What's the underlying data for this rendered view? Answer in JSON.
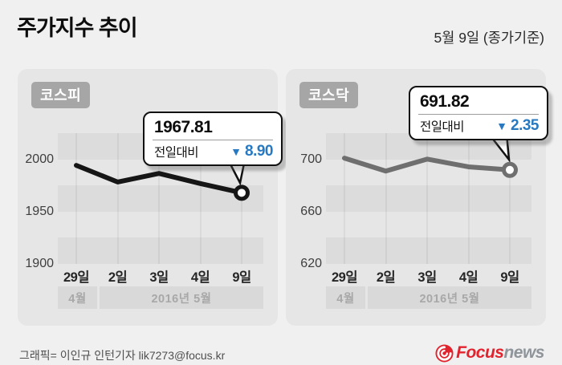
{
  "header": {
    "title": "주가지수 추이",
    "date_note": "5월 9일 (종가기준)"
  },
  "panels": [
    {
      "badge": "코스피",
      "callout": {
        "value": "1967.81",
        "change_label": "전일대비",
        "direction": "down",
        "direction_symbol": "▼",
        "change": "8.90"
      },
      "y_ticks": [
        "2000",
        "1950",
        "1900"
      ],
      "x_ticks": [
        "29일",
        "2일",
        "3일",
        "4일",
        "9일"
      ],
      "month_bars": [
        "4월",
        "2016년 5월"
      ]
    },
    {
      "badge": "코스닥",
      "callout": {
        "value": "691.82",
        "change_label": "전일대비",
        "direction": "down",
        "direction_symbol": "▼",
        "change": "2.35"
      },
      "y_ticks": [
        "700",
        "660",
        "620"
      ],
      "x_ticks": [
        "29일",
        "2일",
        "3일",
        "4일",
        "9일"
      ],
      "month_bars": [
        "4월",
        "2016년 5월"
      ]
    }
  ],
  "footer": {
    "credit": "그래픽= 이인규 인턴기자 lik7273@focus.kr",
    "logo_part1": "Focus",
    "logo_part2": "news"
  },
  "colors": {
    "accent_blue": "#2779c1",
    "kospi_line": "#161616",
    "kosdaq_line": "#6f6f6f",
    "logo_red": "#e1232e",
    "badge_bg": "#a6a6a6",
    "panel_bg": "#e6e6e6",
    "band_dark": "#dcdcdc"
  },
  "chart_data": [
    {
      "type": "line",
      "title": "코스피",
      "categories": [
        "4월 29일",
        "5월 2일",
        "5월 3일",
        "5월 4일",
        "5월 9일"
      ],
      "values": [
        1994.15,
        1978.15,
        1986.41,
        1976.71,
        1967.81
      ],
      "last_close": 1967.81,
      "change_from_prev_day": -8.9,
      "ylim": [
        1900,
        2025
      ],
      "y_ticks": [
        2000,
        1950,
        1900
      ],
      "line_color": "#161616",
      "grid": "banded",
      "legend": "none"
    },
    {
      "type": "line",
      "title": "코스닥",
      "categories": [
        "4월 29일",
        "5월 2일",
        "5월 3일",
        "5월 4일",
        "5월 9일"
      ],
      "values": [
        700.86,
        690.9,
        700.1,
        694.17,
        691.82
      ],
      "last_close": 691.82,
      "change_from_prev_day": -2.35,
      "ylim": [
        620,
        720
      ],
      "y_ticks": [
        700,
        660,
        620
      ],
      "line_color": "#6f6f6f",
      "grid": "banded",
      "legend": "none"
    }
  ]
}
